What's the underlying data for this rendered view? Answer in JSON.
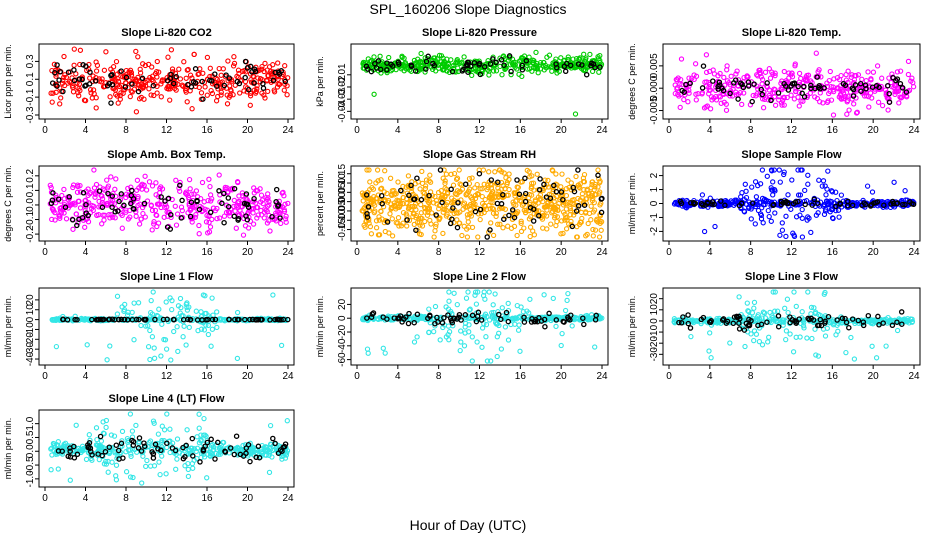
{
  "title": "SPL_160206  Slope Diagnostics",
  "xlabel": "Hour of Day (UTC)",
  "chart_data": [
    {
      "type": "scatter",
      "title": "Slope Li-820 CO2",
      "ylabel": "Licor ppm per min.",
      "xlim": [
        0,
        24
      ],
      "xticks": [
        0,
        4,
        8,
        12,
        16,
        20,
        24
      ],
      "ylim": [
        -0.3,
        0.45
      ],
      "yticks": [
        -0.3,
        -0.1,
        0.1,
        0.3
      ],
      "ytick_labels": [
        "-0.3",
        "-0.1",
        "0.1",
        "0.3"
      ],
      "series": [
        {
          "color": "#ff0000",
          "center": 0.08,
          "spread": 0.11,
          "outliers": 0.2,
          "n": 380
        },
        {
          "color": "#000000",
          "center": 0.08,
          "spread": 0.1,
          "outliers": 0,
          "n": 70
        }
      ]
    },
    {
      "type": "scatter",
      "title": "Slope Li-820 Pressure",
      "ylabel": "kPa per min.",
      "xlim": [
        0,
        24
      ],
      "xticks": [
        0,
        4,
        8,
        12,
        16,
        20,
        24
      ],
      "ylim": [
        -0.043,
        0.012
      ],
      "yticks": [
        -0.04,
        -0.03,
        -0.02,
        -0.01
      ],
      "ytick_labels": [
        "-0.04",
        "-0.03",
        "-0.02",
        "-0.01"
      ],
      "series": [
        {
          "color": "#00cc00",
          "center": -0.002,
          "spread": 0.0035,
          "outliers": 0.06,
          "n": 420
        },
        {
          "color": "#000000",
          "center": -0.002,
          "spread": 0.003,
          "outliers": 0,
          "n": 60
        }
      ]
    },
    {
      "type": "scatter",
      "title": "Slope Li-820 Temp.",
      "ylabel": "degrees C per min.",
      "xlim": [
        0,
        24
      ],
      "xticks": [
        0,
        4,
        8,
        12,
        16,
        20,
        24
      ],
      "ylim": [
        -0.006,
        0.009
      ],
      "yticks": [
        -0.005,
        0.0,
        0.005
      ],
      "ytick_labels": [
        "-0.005",
        "0.000",
        "0.005"
      ],
      "series": [
        {
          "color": "#ff00ff",
          "center": 0.0,
          "spread": 0.0022,
          "outliers": 0.1,
          "n": 400
        },
        {
          "color": "#000000",
          "center": 0.0,
          "spread": 0.0015,
          "outliers": 0,
          "n": 70
        }
      ]
    },
    {
      "type": "scatter",
      "title": "Slope Amb. Box Temp.",
      "ylabel": "degrees C per min.",
      "xlim": [
        0,
        24
      ],
      "xticks": [
        0,
        4,
        8,
        12,
        16,
        20,
        24
      ],
      "ylim": [
        -0.22,
        0.24
      ],
      "yticks": [
        -0.2,
        -0.1,
        0.0,
        0.1,
        0.2
      ],
      "ytick_labels": [
        "-0.2",
        "-0.1",
        "0.0",
        "0.1",
        "0.2"
      ],
      "series": [
        {
          "color": "#ff00ff",
          "center": 0.0,
          "spread": 0.08,
          "outliers": 0.1,
          "n": 420
        },
        {
          "color": "#000000",
          "center": 0.0,
          "spread": 0.07,
          "outliers": 0,
          "n": 70
        }
      ]
    },
    {
      "type": "scatter",
      "title": "Slope Gas Stream RH",
      "ylabel": "percent per min.",
      "xlim": [
        0,
        24
      ],
      "xticks": [
        0,
        4,
        8,
        12,
        16,
        20,
        24
      ],
      "ylim": [
        -0.19,
        0.17
      ],
      "yticks": [
        -0.15,
        -0.1,
        -0.05,
        0.0,
        0.05,
        0.1,
        0.15
      ],
      "ytick_labels": [
        "-0.15",
        "-0.10",
        "-0.05",
        "0.00",
        "0.05",
        "0.10",
        "0.15"
      ],
      "series": [
        {
          "color": "#ffaa00",
          "center": 0.0,
          "spread": 0.085,
          "outliers": 0.05,
          "n": 700
        },
        {
          "color": "#000000",
          "center": 0.0,
          "spread": 0.08,
          "outliers": 0,
          "n": 70
        }
      ]
    },
    {
      "type": "scatter",
      "title": "Slope Sample Flow",
      "ylabel": "ml/min per min.",
      "xlim": [
        0,
        24
      ],
      "xticks": [
        0,
        4,
        8,
        12,
        16,
        20,
        24
      ],
      "ylim": [
        -2.4,
        2.4
      ],
      "yticks": [
        -2,
        -1,
        0,
        1,
        2
      ],
      "ytick_labels": [
        "-2",
        "-1",
        "0",
        "1",
        "2"
      ],
      "series": [
        {
          "color": "#0000ff",
          "center": 0.0,
          "spread": 0.12,
          "outliers": 0.3,
          "n": 420,
          "burst": [
            7,
            17,
            1.4
          ]
        },
        {
          "color": "#000000",
          "center": 0.0,
          "spread": 0.1,
          "outliers": 0,
          "n": 60
        }
      ]
    },
    {
      "type": "scatter",
      "title": "Slope Line 1 Flow",
      "ylabel": "ml/min per min.",
      "xlim": [
        0,
        24
      ],
      "xticks": [
        0,
        4,
        8,
        12,
        16,
        20,
        24
      ],
      "ylim": [
        -42,
        28
      ],
      "yticks": [
        -40,
        -30,
        -20,
        -10,
        0,
        10,
        20
      ],
      "ytick_labels": [
        "-40",
        "-30",
        "-20",
        "-10",
        "0",
        "10",
        "20"
      ],
      "series": [
        {
          "color": "#33e6e6",
          "center": 0.0,
          "spread": 0.6,
          "outliers": 0.3,
          "n": 380,
          "burst": [
            7,
            17,
            18
          ]
        },
        {
          "color": "#000000",
          "center": 0.0,
          "spread": 0.2,
          "outliers": 0,
          "n": 70
        }
      ]
    },
    {
      "type": "scatter",
      "title": "Slope Line 2 Flow",
      "ylabel": "ml/min per min.",
      "xlim": [
        0,
        24
      ],
      "xticks": [
        0,
        4,
        8,
        12,
        16,
        20,
        24
      ],
      "ylim": [
        -62,
        38
      ],
      "yticks": [
        -60,
        -40,
        -20,
        0,
        20
      ],
      "ytick_labels": [
        "-60",
        "-40",
        "-20",
        "0",
        "20"
      ],
      "series": [
        {
          "color": "#33e6e6",
          "center": 0.0,
          "spread": 1.5,
          "outliers": 0.35,
          "n": 400,
          "burst": [
            7,
            17,
            28
          ]
        },
        {
          "color": "#000000",
          "center": 0.0,
          "spread": 4.0,
          "outliers": 0,
          "n": 70
        }
      ]
    },
    {
      "type": "scatter",
      "title": "Slope Line 3 Flow",
      "ylabel": "ml/min per min.",
      "xlim": [
        0,
        24
      ],
      "xticks": [
        0,
        4,
        8,
        12,
        16,
        20,
        24
      ],
      "ylim": [
        -36,
        26
      ],
      "yticks": [
        -30,
        -20,
        -10,
        0,
        10,
        20
      ],
      "ytick_labels": [
        "-30",
        "-20",
        "-10",
        "0",
        "10",
        "20"
      ],
      "series": [
        {
          "color": "#33e6e6",
          "center": 0.0,
          "spread": 1.2,
          "outliers": 0.3,
          "n": 380,
          "burst": [
            7,
            17,
            14
          ]
        },
        {
          "color": "#000000",
          "center": 0.0,
          "spread": 3.0,
          "outliers": 0,
          "n": 70
        }
      ]
    },
    {
      "type": "scatter",
      "title": "Slope Line 4 (LT) Flow",
      "ylabel": "ml/min per min.",
      "xlim": [
        0,
        24
      ],
      "xticks": [
        0,
        4,
        8,
        12,
        16,
        20,
        24
      ],
      "ylim": [
        -1.15,
        1.35
      ],
      "yticks": [
        -1.0,
        -0.5,
        0.0,
        0.5,
        1.0
      ],
      "ytick_labels": [
        "-1.0",
        "-0.5",
        "0.0",
        "0.5",
        "1.0"
      ],
      "series": [
        {
          "color": "#33e6e6",
          "center": 0.05,
          "spread": 0.12,
          "outliers": 0.3,
          "n": 400,
          "burst": [
            4,
            17,
            0.6
          ]
        },
        {
          "color": "#000000",
          "center": 0.05,
          "spread": 0.2,
          "outliers": 0,
          "n": 80
        }
      ]
    }
  ]
}
